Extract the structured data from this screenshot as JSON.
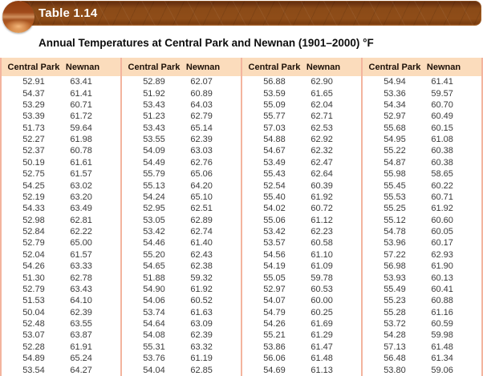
{
  "header": {
    "table_label": "Table 1.14",
    "title": "Annual Temperatures at Central Park and Newnan (1901–2000) °F"
  },
  "colors": {
    "bar_wood_brown": "#8a4a17",
    "bar_dark_edge": "#5e2c0c",
    "sphere_orange": "#b65a1d",
    "header_row_bg": "#fbdcbc",
    "divider_salmon": "#f3b49e",
    "header_text": "#1c1007",
    "data_text": "#3a3a3a"
  },
  "chart_data": {
    "type": "table",
    "title": "Annual Temperatures at Central Park and Newnan (1901–2000) °F",
    "column_group_headers": [
      "Central Park",
      "Newnan"
    ],
    "column_groups": [
      {
        "rows": [
          [
            "52.91",
            "63.41"
          ],
          [
            "54.37",
            "61.41"
          ],
          [
            "53.29",
            "60.71"
          ],
          [
            "53.39",
            "61.72"
          ],
          [
            "51.73",
            "59.64"
          ],
          [
            "52.27",
            "61.98"
          ],
          [
            "52.37",
            "60.78"
          ],
          [
            "50.19",
            "61.61"
          ],
          [
            "52.75",
            "61.57"
          ],
          [
            "54.25",
            "63.02"
          ],
          [
            "52.19",
            "63.20"
          ],
          [
            "54.33",
            "63.49"
          ],
          [
            "52.98",
            "62.81"
          ],
          [
            "52.84",
            "62.22"
          ],
          [
            "52.79",
            "65.00"
          ],
          [
            "52.04",
            "61.57"
          ],
          [
            "54.26",
            "63.33"
          ],
          [
            "51.30",
            "62.78"
          ],
          [
            "52.79",
            "63.43"
          ],
          [
            "51.53",
            "64.10"
          ],
          [
            "50.04",
            "62.39"
          ],
          [
            "52.48",
            "63.55"
          ],
          [
            "53.07",
            "63.87"
          ],
          [
            "52.28",
            "61.91"
          ],
          [
            "54.89",
            "65.24"
          ],
          [
            "53.54",
            "64.27"
          ]
        ]
      },
      {
        "rows": [
          [
            "52.89",
            "62.07"
          ],
          [
            "51.92",
            "60.89"
          ],
          [
            "53.43",
            "64.03"
          ],
          [
            "51.23",
            "62.79"
          ],
          [
            "53.43",
            "65.14"
          ],
          [
            "53.55",
            "62.39"
          ],
          [
            "54.09",
            "63.03"
          ],
          [
            "54.49",
            "62.76"
          ],
          [
            "55.79",
            "65.06"
          ],
          [
            "55.13",
            "64.20"
          ],
          [
            "54.24",
            "65.10"
          ],
          [
            "52.95",
            "62.51"
          ],
          [
            "53.05",
            "62.89"
          ],
          [
            "53.42",
            "62.74"
          ],
          [
            "54.46",
            "61.40"
          ],
          [
            "55.20",
            "62.43"
          ],
          [
            "54.65",
            "62.38"
          ],
          [
            "51.88",
            "59.32"
          ],
          [
            "54.90",
            "61.92"
          ],
          [
            "54.06",
            "60.52"
          ],
          [
            "53.74",
            "61.63"
          ],
          [
            "54.64",
            "63.09"
          ],
          [
            "54.08",
            "62.39"
          ],
          [
            "55.31",
            "63.32"
          ],
          [
            "53.76",
            "61.19"
          ],
          [
            "54.04",
            "62.85"
          ]
        ]
      },
      {
        "rows": [
          [
            "56.88",
            "62.90"
          ],
          [
            "53.59",
            "61.65"
          ],
          [
            "55.09",
            "62.04"
          ],
          [
            "55.77",
            "62.71"
          ],
          [
            "57.03",
            "62.53"
          ],
          [
            "54.88",
            "62.92"
          ],
          [
            "54.67",
            "62.32"
          ],
          [
            "53.49",
            "62.47"
          ],
          [
            "55.43",
            "62.64"
          ],
          [
            "52.54",
            "60.39"
          ],
          [
            "55.40",
            "61.92"
          ],
          [
            "54.02",
            "60.72"
          ],
          [
            "55.06",
            "61.12"
          ],
          [
            "53.42",
            "62.23"
          ],
          [
            "53.57",
            "60.58"
          ],
          [
            "54.56",
            "61.10"
          ],
          [
            "54.19",
            "61.09"
          ],
          [
            "55.05",
            "59.78"
          ],
          [
            "52.97",
            "60.53"
          ],
          [
            "54.07",
            "60.00"
          ],
          [
            "54.79",
            "60.25"
          ],
          [
            "54.26",
            "61.69"
          ],
          [
            "55.21",
            "61.29"
          ],
          [
            "53.86",
            "61.47"
          ],
          [
            "56.06",
            "61.48"
          ],
          [
            "54.69",
            "61.13"
          ]
        ]
      },
      {
        "rows": [
          [
            "54.94",
            "61.41"
          ],
          [
            "53.36",
            "59.57"
          ],
          [
            "54.34",
            "60.70"
          ],
          [
            "52.97",
            "60.49"
          ],
          [
            "55.68",
            "60.15"
          ],
          [
            "54.95",
            "61.08"
          ],
          [
            "55.22",
            "60.38"
          ],
          [
            "54.87",
            "60.38"
          ],
          [
            "55.98",
            "58.65"
          ],
          [
            "55.45",
            "60.22"
          ],
          [
            "55.53",
            "60.71"
          ],
          [
            "55.25",
            "61.92"
          ],
          [
            "55.12",
            "60.60"
          ],
          [
            "54.78",
            "60.05"
          ],
          [
            "53.96",
            "60.17"
          ],
          [
            "57.22",
            "62.93"
          ],
          [
            "56.98",
            "61.90"
          ],
          [
            "53.93",
            "60.13"
          ],
          [
            "55.49",
            "60.41"
          ],
          [
            "55.23",
            "60.88"
          ],
          [
            "55.28",
            "61.16"
          ],
          [
            "53.72",
            "60.59"
          ],
          [
            "54.28",
            "59.98"
          ],
          [
            "57.13",
            "61.48"
          ],
          [
            "56.48",
            "61.34"
          ],
          [
            "53.80",
            "59.06"
          ]
        ]
      }
    ]
  }
}
